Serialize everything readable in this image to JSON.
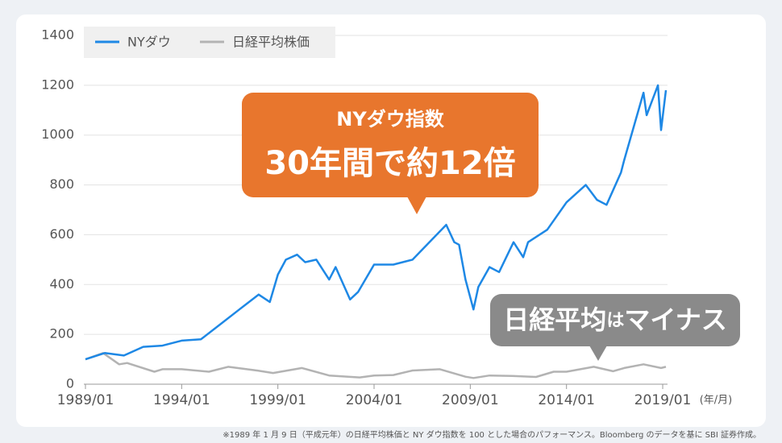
{
  "chart_data": {
    "type": "line",
    "x": [
      "1989/01",
      "1989/12",
      "1990/01",
      "1990/10",
      "1991/01",
      "1991/03",
      "1992/01",
      "1992/08",
      "1993/01",
      "1994/01",
      "1995/01",
      "1995/06",
      "1996/01",
      "1996/06",
      "1997/01",
      "1997/12",
      "1998/01",
      "1998/08",
      "1998/10",
      "1999/01",
      "1999/06",
      "2000/01",
      "2000/04",
      "2000/06",
      "2001/01",
      "2001/09",
      "2002/01",
      "2002/10",
      "2003/03",
      "2003/04",
      "2004/01",
      "2005/01",
      "2006/01",
      "2007/01",
      "2007/06",
      "2007/10",
      "2008/03",
      "2008/06",
      "2008/10",
      "2009/03",
      "2009/06",
      "2010/01",
      "2010/07",
      "2011/03",
      "2011/04",
      "2011/10",
      "2012/01",
      "2012/06",
      "2013/01",
      "2013/05",
      "2014/01",
      "2015/01",
      "2015/06",
      "2015/08",
      "2016/02",
      "2016/06",
      "2016/11",
      "2017/01",
      "2018/01",
      "2018/03",
      "2018/10",
      "2018/12",
      "2019/03"
    ],
    "series": [
      {
        "name": "NYダウ",
        "color": "#1e88e5",
        "values": [
          100,
          null,
          125,
          null,
          115,
          null,
          150,
          null,
          155,
          175,
          180,
          null,
          240,
          null,
          300,
          null,
          360,
          330,
          null,
          440,
          500,
          520,
          null,
          490,
          500,
          420,
          470,
          340,
          370,
          null,
          480,
          480,
          500,
          580,
          null,
          640,
          570,
          560,
          420,
          300,
          390,
          470,
          450,
          null,
          570,
          510,
          570,
          null,
          620,
          null,
          730,
          800,
          null,
          740,
          720,
          null,
          850,
          900,
          1170,
          1080,
          1200,
          1020,
          1180
        ]
      },
      {
        "name": "日経平均株価",
        "color": "#b3b3b3",
        "values": [
          100,
          125,
          null,
          80,
          null,
          85,
          null,
          50,
          60,
          60,
          null,
          50,
          null,
          70,
          null,
          55,
          null,
          null,
          45,
          null,
          null,
          null,
          65,
          null,
          null,
          35,
          null,
          null,
          null,
          27,
          35,
          37,
          55,
          null,
          60,
          null,
          null,
          null,
          30,
          25,
          null,
          35,
          null,
          33,
          null,
          null,
          null,
          29,
          null,
          50,
          50,
          null,
          70,
          null,
          null,
          52,
          null,
          65,
          80,
          null,
          null,
          65,
          70
        ]
      }
    ],
    "xlim": [
      "1989/01",
      "2019/03"
    ],
    "xticks": [
      "1989/01",
      "1994/01",
      "1999/01",
      "2004/01",
      "2009/01",
      "2014/01",
      "2019/01"
    ],
    "x_label": "(年/月)",
    "ylim": [
      0,
      1400
    ],
    "yticks": [
      0,
      200,
      400,
      600,
      800,
      1000,
      1200,
      1400
    ],
    "grid": true,
    "legend": "top-left",
    "annotations": [
      {
        "lines": [
          "NYダウ指数",
          "30年間で約12倍"
        ],
        "color": "#e8762d"
      },
      {
        "parts": [
          "日経平均",
          "は",
          "マイナス"
        ],
        "color": "#8a8a8a"
      }
    ],
    "note": "※1989 年 1 月 9 日（平成元年）の日経平均株価と NY ダウ指数を 100 とした場合のパフォーマンス。Bloomberg のデータを基に SBI 証券作成。"
  }
}
